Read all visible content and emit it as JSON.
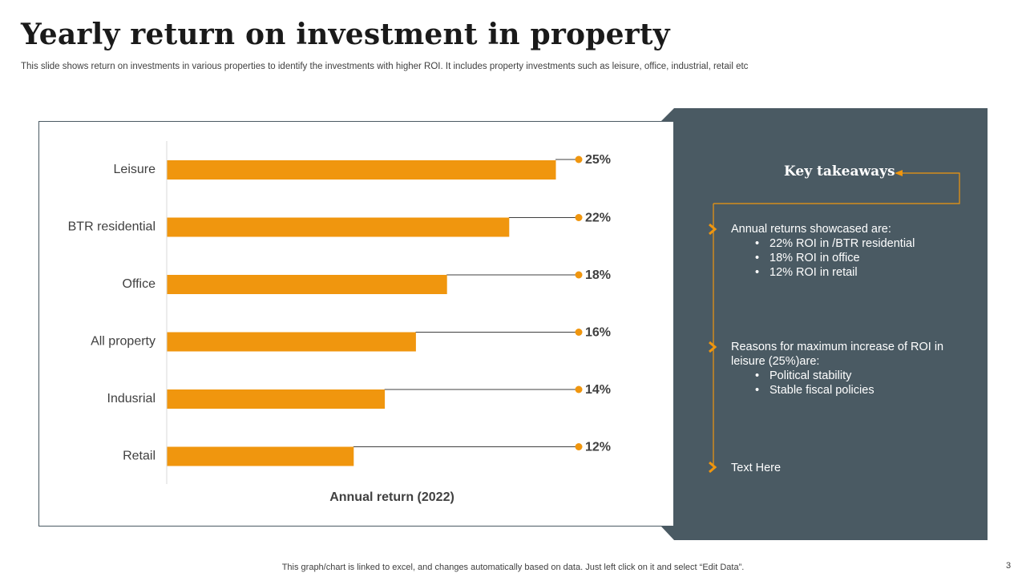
{
  "slide": {
    "title": "Yearly return on investment in property",
    "subtitle": "This slide shows return on investments in various properties to identify the investments with higher ROI. It includes property investments such as leisure, office, industrial, retail etc",
    "footer": "This graph/chart is linked to excel,  and changes automatically based on data. Just left click on it and select “Edit Data”.",
    "page_number": "3"
  },
  "colors": {
    "bar": "#F0960E",
    "panel": "#4A5A63",
    "accent": "#F0960E",
    "text_dark": "#404040"
  },
  "chart_data": {
    "type": "bar",
    "orientation": "horizontal",
    "title": "",
    "categories": [
      "Leisure",
      "BTR residential",
      "Office",
      "All property",
      "Indusrial",
      "Retail"
    ],
    "values": [
      25,
      22,
      18,
      16,
      14,
      12
    ],
    "data_labels": [
      "25%",
      "22%",
      "18%",
      "16%",
      "14%",
      "12%"
    ],
    "xlabel": "Annual return (2022)",
    "ylabel": "",
    "xlim": [
      0,
      25
    ],
    "unit": "%",
    "grid": false,
    "legend": "none"
  },
  "takeaways": {
    "title": "Key takeaways",
    "items": [
      {
        "text": "Annual  returns showcased are:",
        "bullets": [
          "22%  ROI in /BTR residential",
          "18% ROI in office",
          "12% ROI in retail"
        ]
      },
      {
        "text": "Reasons for maximum increase of ROI in leisure (25%)are:",
        "bullets": [
          "Political stability",
          "Stable fiscal policies"
        ]
      },
      {
        "text": "Text Here",
        "bullets": []
      }
    ]
  }
}
